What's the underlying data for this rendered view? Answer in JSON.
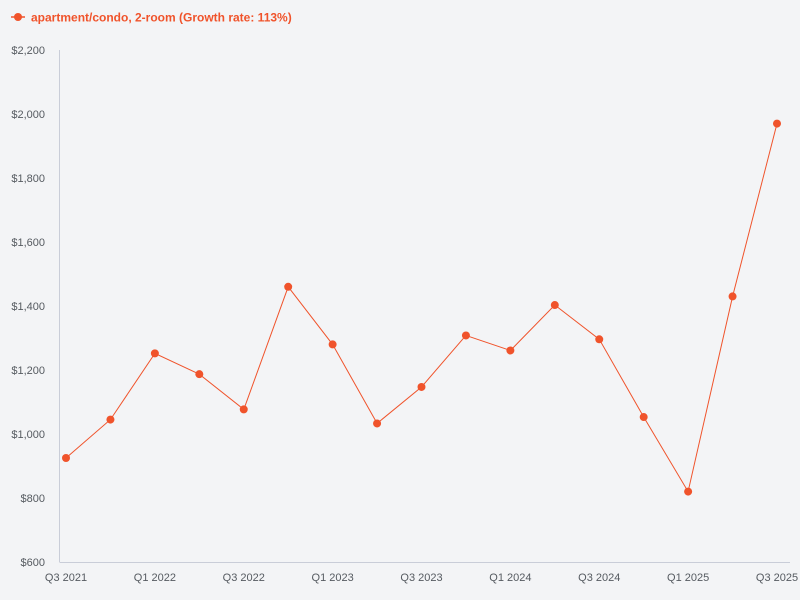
{
  "chart_data": {
    "type": "line",
    "legend": {
      "label": "apartment/condo, 2-room (Growth rate: 113%)",
      "placement": "top-left"
    },
    "colors": {
      "series": "#f0532b",
      "axis": "#c9cdd8",
      "tick_text": "#555a60",
      "background": "#f3f4f6"
    },
    "x": [
      "Q3 2021",
      "Q4 2021",
      "Q1 2022",
      "Q2 2022",
      "Q3 2022",
      "Q4 2022",
      "Q1 2023",
      "Q2 2023",
      "Q3 2023",
      "Q4 2023",
      "Q1 2024",
      "Q2 2024",
      "Q3 2024",
      "Q4 2024",
      "Q1 2025",
      "Q2 2025",
      "Q3 2025"
    ],
    "x_tick_labels": [
      "Q3 2021",
      "",
      "Q1 2022",
      "",
      "Q3 2022",
      "",
      "Q1 2023",
      "",
      "Q3 2023",
      "",
      "Q1 2024",
      "",
      "Q3 2024",
      "",
      "Q1 2025",
      "",
      "Q3 2025"
    ],
    "series": [
      {
        "name": "apartment/condo, 2-room (Growth rate: 113%)",
        "values": [
          925,
          1045,
          1252,
          1187,
          1077,
          1460,
          1280,
          1033,
          1147,
          1308,
          1261,
          1403,
          1296,
          1053,
          820,
          1430,
          1970
        ]
      }
    ],
    "ylim": [
      600,
      2200
    ],
    "y_ticks": [
      600,
      800,
      1000,
      1200,
      1400,
      1600,
      1800,
      2000,
      2200
    ],
    "y_tick_labels": [
      "$600",
      "$800",
      "$1,000",
      "$1,200",
      "$1,400",
      "$1,600",
      "$1,800",
      "$2,000",
      "$2,200"
    ],
    "grid": false
  }
}
